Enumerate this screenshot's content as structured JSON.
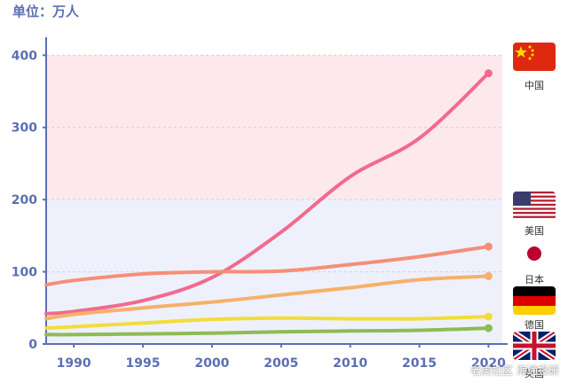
{
  "unit_label": "单位：万人",
  "watermark": "老虎社区 海通投研",
  "colors": {
    "axis": "#5b6fb3",
    "band_high": "#fde8ec",
    "band_low": "#eef1fb",
    "grid": "#c9d0ea"
  },
  "chart_data": {
    "type": "line",
    "x": [
      1988,
      1990,
      1995,
      2000,
      2005,
      2010,
      2015,
      2020
    ],
    "xlim": [
      1988,
      2021
    ],
    "ylim": [
      0,
      420
    ],
    "x_ticks": [
      "1990",
      "1995",
      "2000",
      "2005",
      "2010",
      "2015",
      "2020"
    ],
    "y_ticks": [
      "0",
      "100",
      "200",
      "300",
      "400"
    ],
    "grid": true,
    "series": [
      {
        "name": "中国",
        "color": "#f06b8e",
        "flag": "china-flag-icon",
        "values": [
          42,
          45,
          60,
          92,
          155,
          232,
          285,
          375
        ]
      },
      {
        "name": "美国",
        "color": "#f58f76",
        "flag": "usa-flag-icon",
        "values": [
          82,
          88,
          97,
          100,
          101,
          110,
          121,
          135
        ]
      },
      {
        "name": "日本",
        "color": "#f7b06a",
        "flag": "japan-flag-icon",
        "values": [
          35,
          41,
          50,
          58,
          68,
          78,
          89,
          94
        ]
      },
      {
        "name": "德国",
        "color": "#f2dc3b",
        "flag": "germany-flag-icon",
        "values": [
          22,
          24,
          29,
          34,
          36,
          35,
          35,
          38
        ]
      },
      {
        "name": "英国",
        "color": "#8cbc54",
        "flag": "uk-flag-icon",
        "values": [
          13,
          13,
          14,
          15,
          17,
          18,
          19,
          22
        ]
      }
    ]
  }
}
